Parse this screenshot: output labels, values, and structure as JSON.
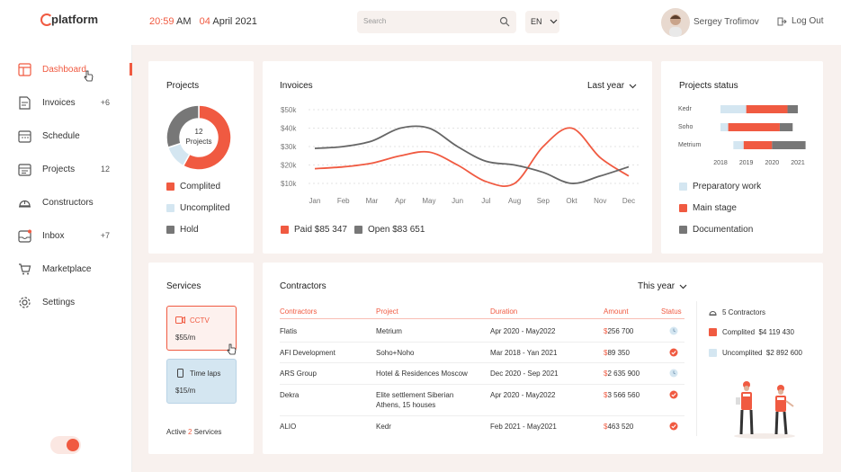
{
  "header": {
    "logo": "platform",
    "time": "20:59",
    "ampm": "AM",
    "day": "04",
    "month_year": "April 2021",
    "search_placeholder": "Search",
    "language": "EN",
    "user_name": "Sergey Trofimov",
    "logout_label": "Log Out"
  },
  "sidebar": {
    "items": [
      {
        "label": "Dashboard",
        "count": "",
        "icon": "dashboard-icon"
      },
      {
        "label": "Invoices",
        "count": "+6",
        "icon": "invoice-icon"
      },
      {
        "label": "Schedule",
        "count": "",
        "icon": "calendar-icon"
      },
      {
        "label": "Projects",
        "count": "12",
        "icon": "projects-icon"
      },
      {
        "label": "Constructors",
        "count": "",
        "icon": "helmet-icon"
      },
      {
        "label": "Inbox",
        "count": "+7",
        "icon": "inbox-icon"
      },
      {
        "label": "Marketplace",
        "count": "",
        "icon": "cart-icon"
      },
      {
        "label": "Settings",
        "count": "",
        "icon": "gear-icon"
      }
    ]
  },
  "projects": {
    "title": "Projects",
    "center_count": "12",
    "center_label": "Projects",
    "legend": [
      "Complited",
      "Uncomplited",
      "Hold"
    ],
    "slices": [
      {
        "name": "Complited",
        "value": 58,
        "color": "#f05a41"
      },
      {
        "name": "Uncomplited",
        "value": 12,
        "color": "#d4e6f1"
      },
      {
        "name": "Hold",
        "value": 30,
        "color": "#777777"
      }
    ]
  },
  "invoices": {
    "title": "Invoices",
    "period": "Last year",
    "paid_label": "Paid $85 347",
    "open_label": "Open $83 651"
  },
  "chart_data": [
    {
      "type": "line",
      "title": "Invoices",
      "categories": [
        "Jan",
        "Feb",
        "Mar",
        "Apr",
        "May",
        "Jun",
        "Jul",
        "Aug",
        "Sep",
        "Okt",
        "Nov",
        "Dec"
      ],
      "yticks": [
        "$50k",
        "$40k",
        "$30k",
        "$20k",
        "$10k"
      ],
      "ylim": [
        10,
        50
      ],
      "series": [
        {
          "name": "Paid",
          "color": "#f05a41",
          "values": [
            18,
            19,
            21,
            25,
            27,
            20,
            11,
            10,
            30,
            40,
            24,
            14
          ]
        },
        {
          "name": "Open",
          "color": "#666666",
          "values": [
            29,
            30,
            33,
            40,
            40,
            30,
            22,
            20,
            16,
            10,
            14,
            19
          ]
        }
      ]
    },
    {
      "type": "bar",
      "title": "Projects status",
      "categories": [
        "Kedr",
        "Soho",
        "Metrium"
      ],
      "x_ticks": [
        "2018",
        "2019",
        "2020",
        "2021"
      ],
      "legend": [
        "Preparatory work",
        "Main stage",
        "Documentation"
      ],
      "colors": [
        "#d4e6f1",
        "#f05a41",
        "#777777"
      ],
      "rows": [
        {
          "name": "Kedr",
          "segments": [
            [
              2018.0,
              2019.0
            ],
            [
              2019.0,
              2020.6
            ],
            [
              2020.6,
              2021.0
            ]
          ]
        },
        {
          "name": "Soho",
          "segments": [
            [
              2018.0,
              2018.3
            ],
            [
              2018.3,
              2020.3
            ],
            [
              2020.3,
              2020.8
            ]
          ]
        },
        {
          "name": "Metrium",
          "segments": [
            [
              2018.5,
              2018.9
            ],
            [
              2018.9,
              2020.0
            ],
            [
              2020.0,
              2021.3
            ]
          ]
        }
      ]
    }
  ],
  "services": {
    "title": "Services",
    "items": [
      {
        "name": "CCTV",
        "price": "$55/m"
      },
      {
        "name": "Time laps",
        "price": "$15/m"
      }
    ],
    "active_prefix": "Active",
    "active_count": "2",
    "active_suffix": "Services"
  },
  "contractors": {
    "title": "Contractors",
    "period": "This year",
    "headers": [
      "Contractors",
      "Project",
      "Duration",
      "Amount",
      "Status"
    ],
    "rows": [
      {
        "name": "Flatis",
        "project": "Metrium",
        "project2": "",
        "duration": "Apr 2020 - May2022",
        "amount": "256 700",
        "status": "pending"
      },
      {
        "name": "AFI Development",
        "project": "Soho+Noho",
        "project2": "",
        "duration": "Mar 2018 - Yan 2021",
        "amount": "89 350",
        "status": "done"
      },
      {
        "name": "ARS Group",
        "project": "Hotel & Residences Moscow",
        "project2": "",
        "duration": "Dec 2020 - Sep 2021",
        "amount": "2 635 900",
        "status": "pending"
      },
      {
        "name": "Dekra",
        "project": "Elite settlement Siberian",
        "project2": "Athens, 15 houses",
        "duration": "Apr 2020 - May2022",
        "amount": "3 566 560",
        "status": "done"
      },
      {
        "name": "ALIO",
        "project": "Kedr",
        "project2": "",
        "duration": "Feb 2021 - May2021",
        "amount": "463 520",
        "status": "done"
      }
    ],
    "summary_count": "5 Contractors",
    "complited_label": "Complited",
    "complited_amount": "$4 119 430",
    "uncomplited_label": "Uncomplited",
    "uncomplited_amount": "$2 892 600"
  },
  "colors": {
    "accent": "#f05a41",
    "light_blue": "#d4e6f1",
    "gray": "#777777",
    "bg": "#f8f1ee"
  }
}
